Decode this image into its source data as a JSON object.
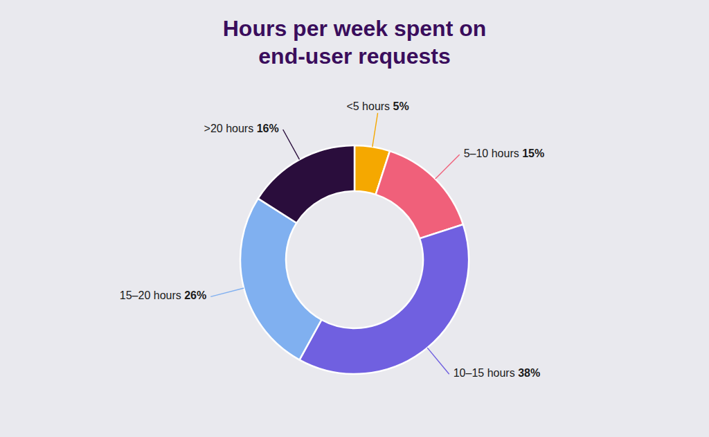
{
  "chart_data": {
    "type": "donut",
    "title": "Hours per week spent on\nend-user requests",
    "categories": [
      "<5 hours",
      "5–10 hours",
      "10–15 hours",
      "15–20 hours",
      ">20 hours"
    ],
    "values": [
      5,
      15,
      38,
      26,
      16
    ],
    "value_labels": [
      "5%",
      "15%",
      "38%",
      "26%",
      "16%"
    ],
    "colors": [
      "#f5a800",
      "#f0607a",
      "#7060e0",
      "#80b0f0",
      "#2a0d3c"
    ],
    "data_labels": true
  }
}
